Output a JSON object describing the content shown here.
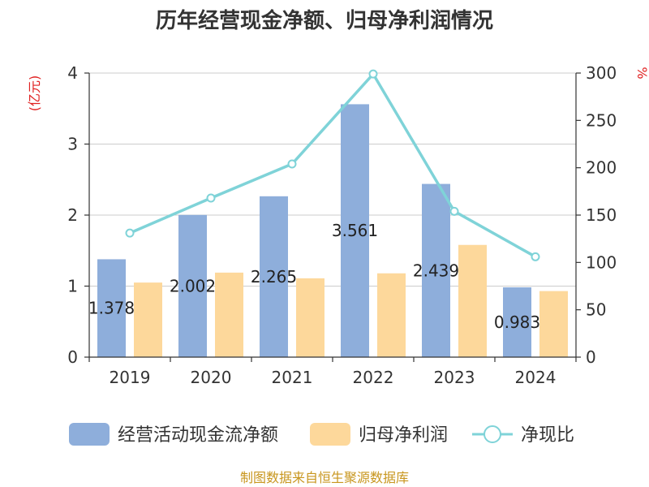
{
  "chart_data": {
    "type": "bar",
    "title": "历年经营现金净额、归母净利润情况",
    "categories": [
      "2019",
      "2020",
      "2021",
      "2022",
      "2023",
      "2024"
    ],
    "series": [
      {
        "name": "经营活动现金流净额",
        "kind": "bar",
        "axis": "left",
        "color": "#8eaedb",
        "values": [
          1.378,
          2.002,
          2.265,
          3.561,
          2.439,
          0.983
        ],
        "labels": [
          "1.378",
          "2.002",
          "2.265",
          "3.561",
          "2.439",
          "0.983"
        ]
      },
      {
        "name": "归母净利润",
        "kind": "bar",
        "axis": "left",
        "color": "#fdd89b",
        "values": [
          1.05,
          1.19,
          1.11,
          1.18,
          1.58,
          0.93
        ]
      },
      {
        "name": "净现比",
        "kind": "line",
        "axis": "right",
        "color": "#7fd3d8",
        "values": [
          131,
          168,
          204,
          299,
          154,
          106
        ]
      }
    ],
    "yleft": {
      "unit": "(亿元)",
      "min": 0,
      "max": 4,
      "ticks": [
        "0",
        "1",
        "2",
        "3",
        "4"
      ]
    },
    "yright": {
      "unit": "%",
      "min": 0,
      "max": 300,
      "ticks": [
        "0",
        "50",
        "100",
        "150",
        "200",
        "250",
        "300"
      ]
    },
    "grid": true,
    "legend_position": "bottom"
  },
  "source_note": "制图数据来自恒生聚源数据库"
}
